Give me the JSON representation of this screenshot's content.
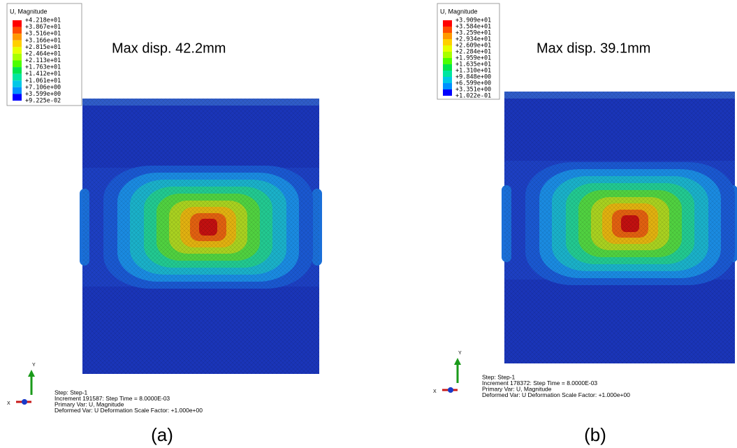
{
  "panels": [
    {
      "legend_title": "U, Magnitude",
      "legend_values": [
        "+4.218e+01",
        "+3.867e+01",
        "+3.516e+01",
        "+3.166e+01",
        "+2.815e+01",
        "+2.464e+01",
        "+2.113e+01",
        "+1.763e+01",
        "+1.412e+01",
        "+1.061e+01",
        "+7.106e+00",
        "+3.599e+00",
        "+9.225e-02"
      ],
      "annotation": "Max disp. 42.2mm",
      "step_info": [
        "Step: Step-1",
        "Increment    191587: Step Time =    8.0000E-03",
        "Primary Var: U, Magnitude",
        "Deformed Var: U   Deformation Scale Factor: +1.000e+00"
      ],
      "triad": [
        "Y",
        "X"
      ],
      "label": "(a)"
    },
    {
      "legend_title": "U, Magnitude",
      "legend_values": [
        "+3.909e+01",
        "+3.584e+01",
        "+3.259e+01",
        "+2.934e+01",
        "+2.609e+01",
        "+2.284e+01",
        "+1.959e+01",
        "+1.635e+01",
        "+1.310e+01",
        "+9.848e+00",
        "+6.599e+00",
        "+3.351e+00",
        "+1.022e-01"
      ],
      "annotation": "Max disp. 39.1mm",
      "step_info": [
        "Step: Step-1",
        "Increment    178372: Step Time =    8.0000E-03",
        "Primary Var: U, Magnitude",
        "Deformed Var: U   Deformation Scale Factor: +1.000e+00"
      ],
      "triad": [
        "Y",
        "X"
      ],
      "label": "(b)"
    }
  ]
}
